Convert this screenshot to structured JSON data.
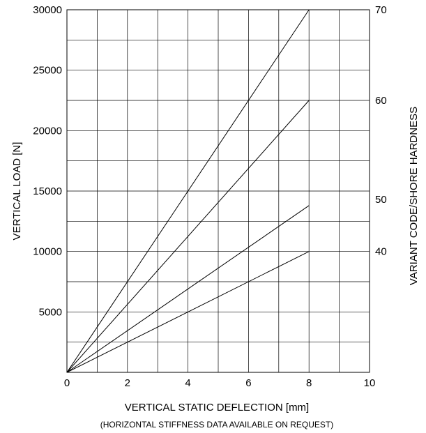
{
  "chart_data": {
    "type": "line",
    "xlabel": "VERTICAL STATIC DEFLECTION [mm]",
    "subtitle": "(HORIZONTAL STIFFNESS DATA AVAILABLE ON REQUEST)",
    "ylabel": "VERTICAL LOAD [N]",
    "y2label": "VARIANT CODE/SHORE HARDNESS",
    "xlim": [
      0,
      10
    ],
    "ylim": [
      0,
      30000
    ],
    "x_ticks": [
      "0",
      "2",
      "4",
      "6",
      "8",
      "10"
    ],
    "y_ticks": [
      "5000",
      "10000",
      "15000",
      "20000",
      "25000",
      "30000"
    ],
    "grid": true,
    "series": [
      {
        "name": "70",
        "x": [
          0,
          8
        ],
        "y": [
          0,
          30000
        ]
      },
      {
        "name": "60",
        "x": [
          0,
          8
        ],
        "y": [
          0,
          22500
        ]
      },
      {
        "name": "50",
        "x": [
          0,
          8
        ],
        "y": [
          0,
          13800
        ]
      },
      {
        "name": "40",
        "x": [
          0,
          8
        ],
        "y": [
          0,
          10000
        ]
      }
    ],
    "right_axis_labels": [
      {
        "text": "70",
        "y": 30000
      },
      {
        "text": "60",
        "y": 22500
      },
      {
        "text": "50",
        "y": 14300
      },
      {
        "text": "40",
        "y": 10000
      }
    ]
  }
}
